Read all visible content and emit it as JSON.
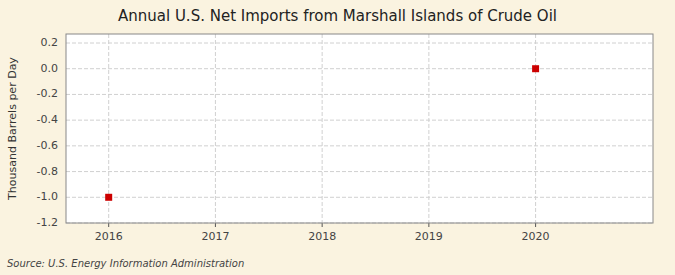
{
  "chart_data": {
    "type": "scatter",
    "title": "Annual U.S. Net Imports from Marshall Islands of Crude Oil",
    "ylabel": "Thousand Barrels per Day",
    "annotations": [
      "Source: U.S. Energy Information Administration"
    ],
    "x": [
      2016,
      2020
    ],
    "values": [
      -1.0,
      0.0
    ],
    "color": "#cc0000",
    "marker": "square",
    "xlim": [
      2015.6,
      2021.1
    ],
    "ylim": [
      -1.2,
      0.27
    ],
    "xticks": [
      2016,
      2017,
      2018,
      2019,
      2020
    ],
    "yticks": [
      0.2,
      {
        "value": 0.0,
        "label": "0.0"
      },
      -0.2,
      -0.4,
      -0.6,
      -0.8,
      {
        "value": -1.0,
        "label": "-1.0"
      },
      -1.2
    ],
    "grid": true
  }
}
